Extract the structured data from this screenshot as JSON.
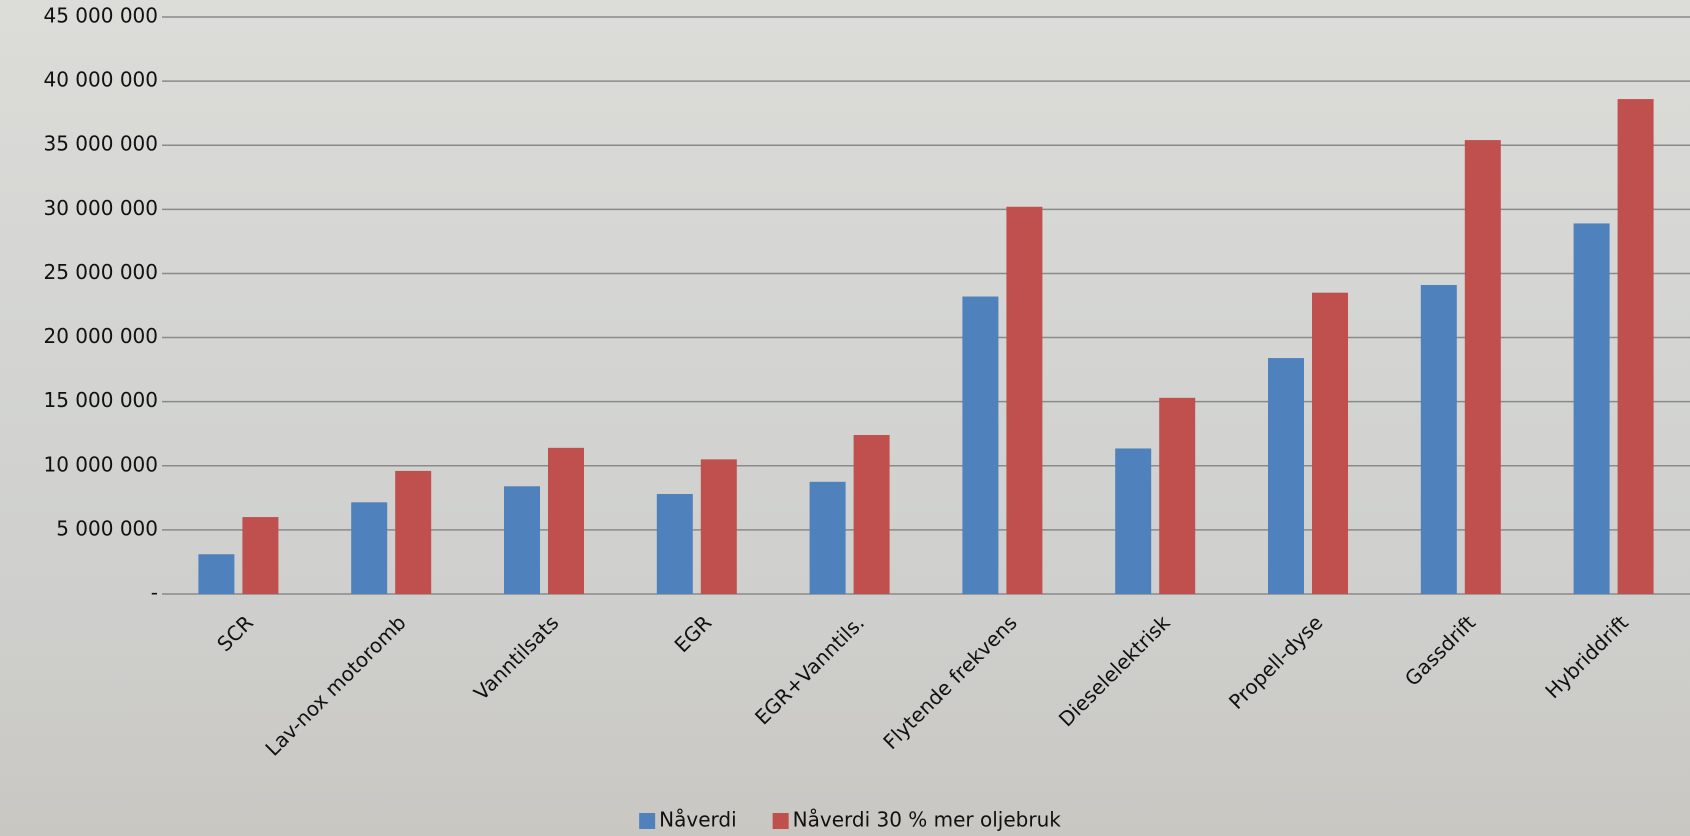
{
  "chart_data": {
    "type": "bar",
    "categories": [
      "SCR",
      "Lav-nox motoromb",
      "Vanntilsats",
      "EGR",
      "EGR+Vanntils.",
      "Flytende frekvens",
      "Dieselelektrisk",
      "Propell-dyse",
      "Gassdrift",
      "Hybriddrift"
    ],
    "series": [
      {
        "name": "Nåverdi",
        "color": "#4f81bd",
        "values": [
          3100000,
          7150000,
          8400000,
          7800000,
          8750000,
          23200000,
          11350000,
          18400000,
          24100000,
          28900000
        ]
      },
      {
        "name": "Nåverdi 30 % mer oljebruk",
        "color": "#c0504d",
        "values": [
          6000000,
          9600000,
          11400000,
          10500000,
          12400000,
          30200000,
          15300000,
          23500000,
          35400000,
          38600000
        ]
      }
    ],
    "ylim": [
      0,
      45000000
    ],
    "yticks": [
      {
        "value": 0,
        "label": "-"
      },
      {
        "value": 5000000,
        "label": "5 000 000"
      },
      {
        "value": 10000000,
        "label": "10 000 000"
      },
      {
        "value": 15000000,
        "label": "15 000 000"
      },
      {
        "value": 20000000,
        "label": "20 000 000"
      },
      {
        "value": 25000000,
        "label": "25 000 000"
      },
      {
        "value": 30000000,
        "label": "30 000 000"
      },
      {
        "value": 35000000,
        "label": "35 000 000"
      },
      {
        "value": 40000000,
        "label": "40 000 000"
      },
      {
        "value": 45000000,
        "label": "45 000 000"
      }
    ],
    "grid": true,
    "legend": "bottom"
  }
}
